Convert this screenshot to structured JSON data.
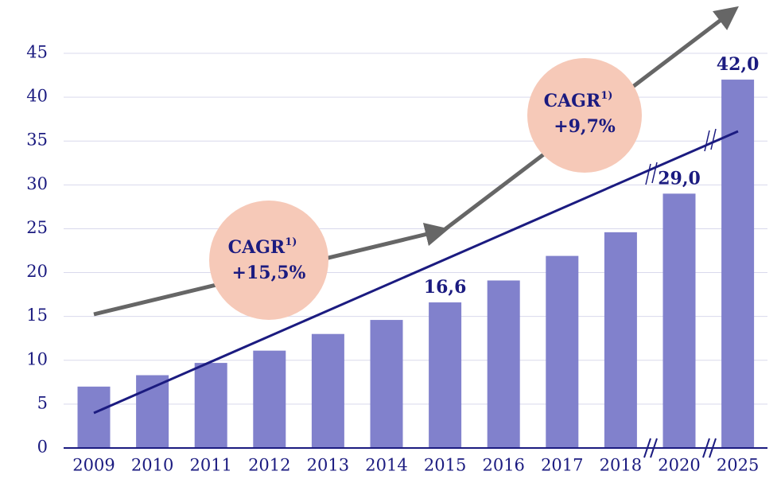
{
  "chart_data": {
    "type": "bar",
    "categories": [
      "2009",
      "2010",
      "2011",
      "2012",
      "2013",
      "2014",
      "2015",
      "2016",
      "2017",
      "2018",
      "2020",
      "2025"
    ],
    "values": [
      7.0,
      8.3,
      9.7,
      11.1,
      13.0,
      14.6,
      16.6,
      19.1,
      21.9,
      24.6,
      29.0,
      42.0
    ],
    "value_labels": [
      null,
      null,
      null,
      null,
      null,
      null,
      "16,6",
      null,
      null,
      null,
      "29,0",
      "42,0"
    ],
    "color": "#8181cc",
    "ylim": [
      0,
      45
    ],
    "yticks": [
      0,
      5,
      10,
      15,
      20,
      25,
      30,
      35,
      40,
      45
    ],
    "grid": true,
    "annotations": [
      {
        "text": "CAGR",
        "note": "1)",
        "value": "+15,5%"
      },
      {
        "text": "CAGR",
        "note": "1)",
        "value": "+9,7%"
      }
    ]
  }
}
